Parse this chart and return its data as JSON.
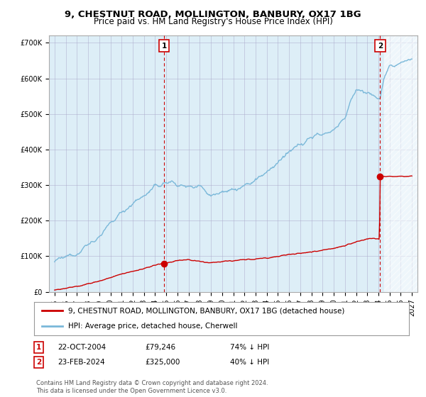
{
  "title": "9, CHESTNUT ROAD, MOLLINGTON, BANBURY, OX17 1BG",
  "subtitle": "Price paid vs. HM Land Registry's House Price Index (HPI)",
  "hpi_label": "HPI: Average price, detached house, Cherwell",
  "property_label": "9, CHESTNUT ROAD, MOLLINGTON, BANBURY, OX17 1BG (detached house)",
  "hpi_color": "#7ab8d9",
  "hpi_fill_color": "#ddeef7",
  "price_color": "#cc0000",
  "marker_color": "#cc0000",
  "vline_color": "#cc0000",
  "annotation_box_color": "#cc0000",
  "background_color": "#ffffff",
  "chart_bg_color": "#ddeef7",
  "grid_color": "#aaaacc",
  "ylim": [
    0,
    720000
  ],
  "yticks": [
    0,
    100000,
    200000,
    300000,
    400000,
    500000,
    600000,
    700000
  ],
  "ytick_labels": [
    "£0",
    "£100K",
    "£200K",
    "£300K",
    "£400K",
    "£500K",
    "£600K",
    "£700K"
  ],
  "xlim_start": 1994.5,
  "xlim_end": 2027.5,
  "sale1_year": 2004.81,
  "sale1_price": 79246,
  "sale1_label": "1",
  "sale1_date": "22-OCT-2004",
  "sale1_amount": "£79,246",
  "sale1_hpi_pct": "74% ↓ HPI",
  "sale2_year": 2024.15,
  "sale2_price": 325000,
  "sale2_label": "2",
  "sale2_date": "23-FEB-2024",
  "sale2_amount": "£325,000",
  "sale2_hpi_pct": "40% ↓ HPI",
  "footer": "Contains HM Land Registry data © Crown copyright and database right 2024.\nThis data is licensed under the Open Government Licence v3.0.",
  "title_fontsize": 9.5,
  "subtitle_fontsize": 8.5,
  "tick_fontsize": 7,
  "legend_fontsize": 7.5,
  "footer_fontsize": 6
}
